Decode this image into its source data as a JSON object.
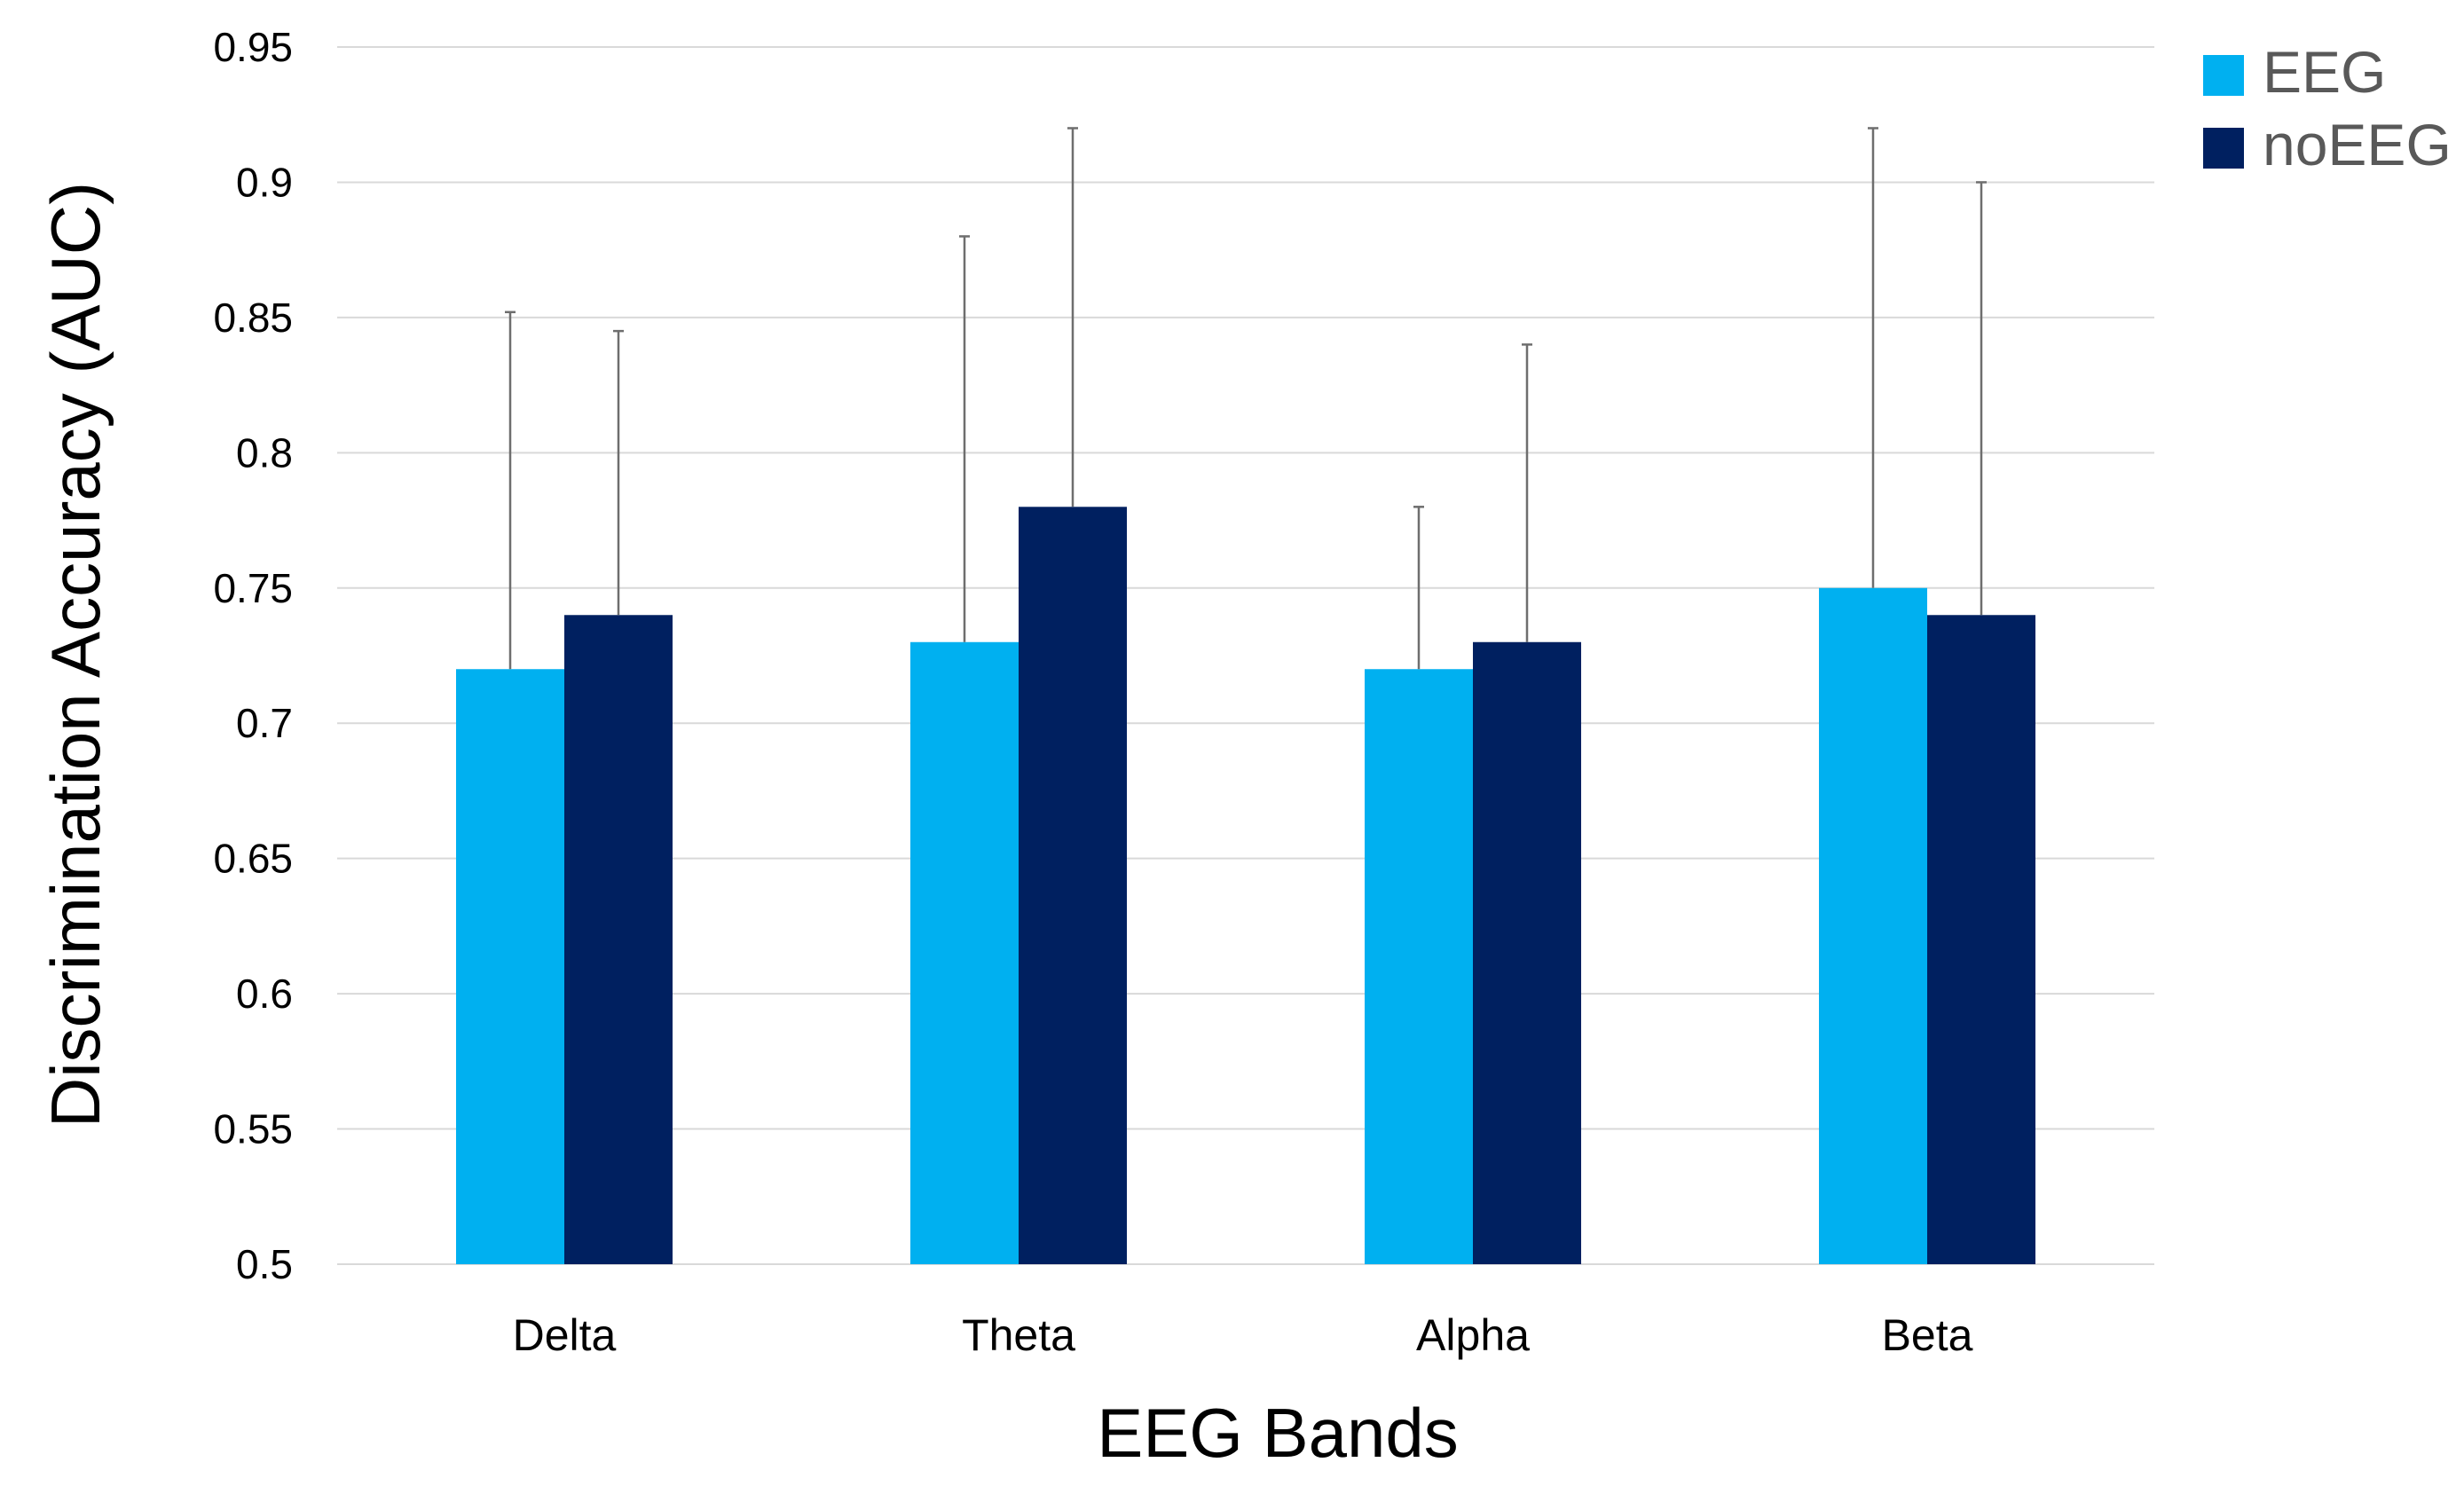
{
  "chart_data": {
    "type": "bar",
    "title": "",
    "xlabel": "EEG Bands",
    "ylabel": "Discrimination Accuracy (AUC)",
    "ylim": [
      0.5,
      0.95
    ],
    "yticks": [
      "0.5",
      "0.55",
      "0.6",
      "0.65",
      "0.7",
      "0.75",
      "0.8",
      "0.85",
      "0.9",
      "0.95"
    ],
    "grid": true,
    "legend_position": "top-right",
    "categories": [
      "Delta",
      "Theta",
      "Alpha",
      "Beta"
    ],
    "series": [
      {
        "name": "EEG",
        "color": "#00b0f0",
        "values": [
          0.72,
          0.73,
          0.72,
          0.75
        ],
        "error_upper": [
          0.852,
          0.88,
          0.78,
          0.92
        ]
      },
      {
        "name": "noEEG",
        "color": "#002060",
        "values": [
          0.74,
          0.78,
          0.73,
          0.74
        ],
        "error_upper": [
          0.845,
          0.92,
          0.84,
          0.9
        ]
      }
    ]
  }
}
